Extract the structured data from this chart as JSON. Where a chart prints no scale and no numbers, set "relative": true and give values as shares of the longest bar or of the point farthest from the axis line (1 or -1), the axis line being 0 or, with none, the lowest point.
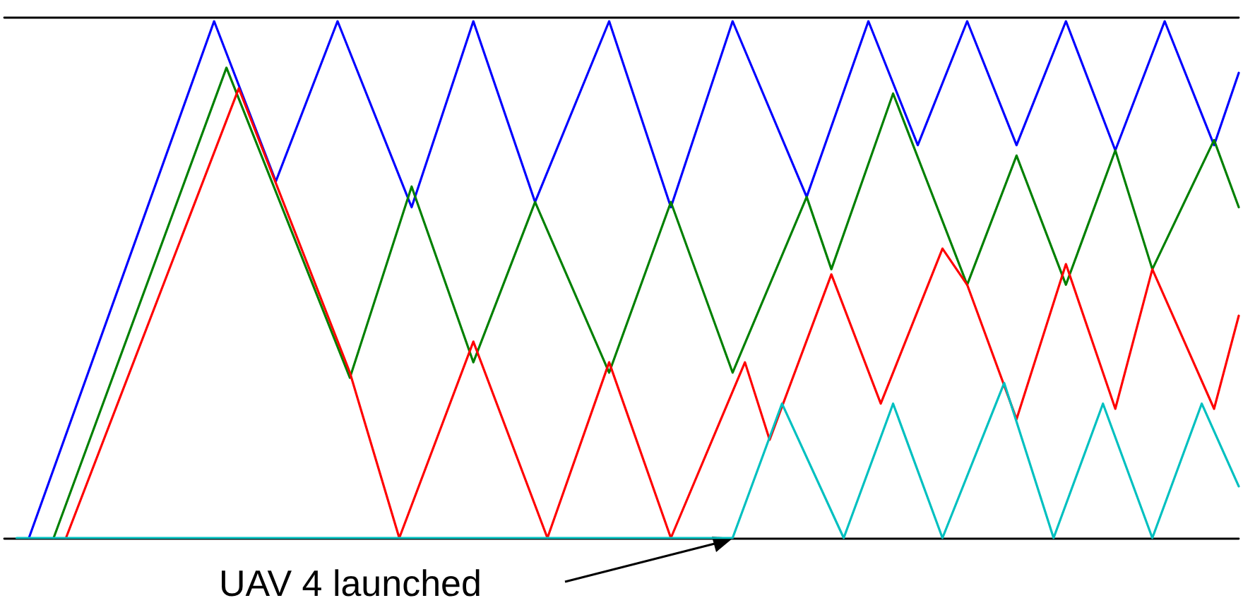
{
  "chart_data": {
    "type": "line",
    "relative": true,
    "marker": "none",
    "line_style": "solid",
    "categories": [
      null,
      null,
      null,
      null,
      null,
      null,
      null,
      null,
      null,
      null,
      null,
      null,
      null,
      null,
      null,
      null,
      null,
      null,
      null,
      null,
      null,
      null,
      null,
      null,
      null,
      null,
      null,
      null,
      null,
      null,
      null,
      null,
      null,
      null,
      null,
      null,
      null,
      null,
      null,
      null,
      null,
      null,
      null,
      null,
      null,
      null,
      null,
      null,
      null,
      null,
      null,
      null,
      null,
      null,
      null,
      null,
      null,
      null,
      null,
      null,
      null,
      null,
      null,
      null,
      null,
      null,
      null,
      null,
      null,
      null,
      null,
      null,
      null,
      null,
      null,
      null,
      null,
      null,
      null,
      null,
      null,
      null,
      null,
      null,
      null,
      null,
      null,
      null,
      null,
      null,
      null,
      null,
      null,
      null,
      null,
      null,
      null,
      null,
      null,
      null,
      null
    ],
    "series": [
      {
        "color": "#0000ff",
        "values": [
          null,
          null,
          0,
          null,
          null,
          null,
          null,
          null,
          null,
          null,
          null,
          null,
          null,
          null,
          null,
          null,
          null,
          1,
          null,
          null,
          null,
          null,
          0.69,
          null,
          null,
          null,
          null,
          1,
          null,
          null,
          null,
          null,
          null,
          0.64,
          null,
          null,
          null,
          null,
          1,
          null,
          null,
          null,
          null,
          0.65,
          null,
          null,
          null,
          null,
          null,
          1,
          null,
          null,
          null,
          null,
          0.64,
          null,
          null,
          null,
          null,
          1,
          null,
          null,
          null,
          null,
          null,
          0.66,
          null,
          null,
          null,
          null,
          1,
          null,
          null,
          null,
          0.76,
          null,
          null,
          null,
          1,
          null,
          null,
          null,
          0.76,
          null,
          null,
          null,
          1,
          null,
          null,
          null,
          0.75,
          null,
          null,
          null,
          1,
          null,
          null,
          null,
          0.76,
          null,
          0.9
        ]
      },
      {
        "color": "#008000",
        "values": [
          null,
          null,
          null,
          null,
          0,
          null,
          null,
          null,
          null,
          null,
          null,
          null,
          null,
          null,
          null,
          null,
          null,
          null,
          0.91,
          null,
          null,
          null,
          null,
          null,
          null,
          null,
          null,
          null,
          0.31,
          null,
          null,
          null,
          null,
          0.68,
          null,
          null,
          null,
          null,
          0.34,
          null,
          null,
          null,
          null,
          0.65,
          null,
          null,
          null,
          null,
          null,
          0.32,
          null,
          null,
          null,
          null,
          0.65,
          null,
          null,
          null,
          null,
          0.32,
          null,
          null,
          null,
          null,
          null,
          0.66,
          null,
          0.52,
          null,
          null,
          null,
          null,
          0.86,
          null,
          null,
          null,
          null,
          null,
          0.49,
          null,
          null,
          null,
          0.74,
          null,
          null,
          null,
          0.49,
          null,
          null,
          null,
          0.75,
          null,
          null,
          0.52,
          null,
          null,
          null,
          null,
          0.77,
          null,
          0.64
        ]
      },
      {
        "color": "#ff0000",
        "values": [
          null,
          null,
          null,
          null,
          null,
          0,
          null,
          null,
          null,
          null,
          null,
          null,
          null,
          null,
          null,
          null,
          null,
          null,
          null,
          0.87,
          null,
          null,
          null,
          null,
          null,
          null,
          null,
          null,
          0.32,
          null,
          null,
          null,
          0,
          null,
          null,
          null,
          null,
          null,
          0.38,
          null,
          null,
          null,
          null,
          null,
          0,
          null,
          null,
          null,
          null,
          0.34,
          null,
          null,
          null,
          null,
          0,
          null,
          null,
          null,
          null,
          null,
          0.34,
          null,
          0.19,
          null,
          null,
          null,
          null,
          0.51,
          null,
          null,
          null,
          0.26,
          null,
          null,
          null,
          null,
          0.56,
          null,
          0.49,
          null,
          null,
          null,
          0.23,
          null,
          null,
          null,
          0.53,
          null,
          null,
          null,
          0.25,
          null,
          null,
          0.52,
          null,
          null,
          null,
          null,
          0.25,
          null,
          0.43
        ]
      },
      {
        "color": "#00c0c0",
        "values": [
          null,
          0,
          null,
          null,
          null,
          null,
          null,
          null,
          null,
          null,
          null,
          null,
          null,
          null,
          null,
          null,
          null,
          null,
          null,
          null,
          null,
          null,
          null,
          null,
          null,
          null,
          null,
          null,
          null,
          null,
          null,
          null,
          null,
          null,
          null,
          null,
          null,
          null,
          null,
          null,
          null,
          null,
          null,
          null,
          null,
          null,
          null,
          null,
          null,
          null,
          null,
          null,
          null,
          null,
          null,
          null,
          null,
          null,
          null,
          0,
          null,
          null,
          null,
          0.26,
          null,
          null,
          null,
          null,
          0,
          null,
          null,
          null,
          0.26,
          null,
          null,
          null,
          0,
          null,
          null,
          null,
          null,
          0.3,
          null,
          null,
          null,
          0,
          null,
          null,
          null,
          0.26,
          null,
          null,
          null,
          0,
          null,
          null,
          null,
          0.26,
          null,
          null,
          0.1
        ]
      }
    ],
    "annotations": [
      "UAV 4 launched"
    ]
  }
}
